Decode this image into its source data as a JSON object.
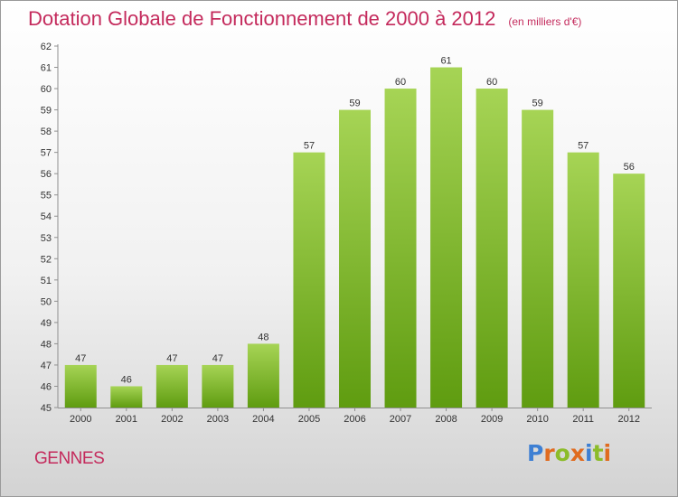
{
  "header": {
    "title": "Dotation Globale de Fonctionnement de 2000 à 2012",
    "subtitle": "(en milliers d'€)"
  },
  "footer": {
    "commune": "GENNES",
    "logo_text": "Proxiti"
  },
  "colors": {
    "title": "#c42a5c",
    "bar_top": "#a6d455",
    "bar_bottom": "#5f9c10",
    "logo_letters": [
      "#3d7fd3",
      "#e06b1f",
      "#8cbc2a",
      "#e06b1f",
      "#3d7fd3",
      "#8cbc2a",
      "#e06b1f"
    ]
  },
  "chart_data": {
    "type": "bar",
    "categories": [
      "2000",
      "2001",
      "2002",
      "2003",
      "2004",
      "2005",
      "2006",
      "2007",
      "2008",
      "2009",
      "2010",
      "2011",
      "2012"
    ],
    "values": [
      47,
      46,
      47,
      47,
      48,
      57,
      59,
      60,
      61,
      60,
      59,
      57,
      56
    ],
    "ylim": [
      45,
      62
    ],
    "yticks": [
      45,
      46,
      47,
      48,
      49,
      50,
      51,
      52,
      53,
      54,
      55,
      56,
      57,
      58,
      59,
      60,
      61,
      62
    ],
    "data_labels": true,
    "grid": false
  }
}
